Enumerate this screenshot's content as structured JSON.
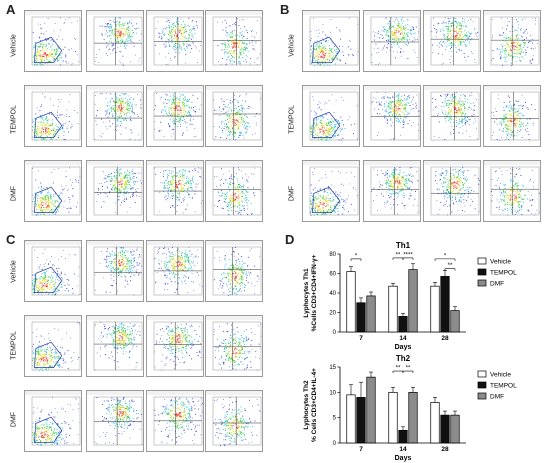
{
  "panels": {
    "A": {
      "letter": "A",
      "rows": [
        "Vehicle",
        "TEMPOL",
        "DMF"
      ]
    },
    "B": {
      "letter": "B",
      "rows": [
        "Vehicle",
        "TEMPOL",
        "DMF"
      ]
    },
    "C": {
      "letter": "C",
      "rows": [
        "Vehicle",
        "TEMPOL",
        "DMF"
      ]
    },
    "D": {
      "letter": "D"
    }
  },
  "colors": {
    "vehicle": "#ffffff",
    "tempol": "#111111",
    "dmf": "#8c8c8c"
  },
  "chart_data": [
    {
      "type": "bar",
      "title": "Th1",
      "ylabel_line1": "Lyphocytes Th1",
      "ylabel_line2": "%Cells CD3+CD4+IFN-γ+",
      "xlabel": "Days",
      "categories": [
        "7",
        "14",
        "28"
      ],
      "yticks": [
        0,
        20,
        40,
        60,
        80
      ],
      "ylim": [
        0,
        80
      ],
      "legend_position": "right",
      "series": [
        {
          "name": "Vehicle",
          "values": [
            62,
            47,
            47
          ],
          "errors": [
            5,
            3,
            4
          ]
        },
        {
          "name": "TEMPOL",
          "values": [
            30,
            16,
            57
          ],
          "errors": [
            5,
            3,
            6
          ]
        },
        {
          "name": "DMF",
          "values": [
            37,
            64,
            22
          ],
          "errors": [
            4,
            6,
            4
          ]
        }
      ],
      "significance": [
        "*",
        "**",
        "****",
        "*",
        "**"
      ]
    },
    {
      "type": "bar",
      "title": "Th2",
      "ylabel_line1": "Lyphocytes Th2",
      "ylabel_line2": "% Cells CD3+CD4+IL-4+",
      "xlabel": "Days",
      "categories": [
        "7",
        "14",
        "28"
      ],
      "yticks": [
        0,
        5,
        10,
        15
      ],
      "ylim": [
        0,
        15
      ],
      "legend_position": "right",
      "series": [
        {
          "name": "Vehicle",
          "values": [
            9.5,
            10,
            8
          ],
          "errors": [
            2,
            1,
            1
          ]
        },
        {
          "name": "TEMPOL",
          "values": [
            9,
            2.5,
            5.5
          ],
          "errors": [
            3,
            0.7,
            0.8
          ]
        },
        {
          "name": "DMF",
          "values": [
            13,
            10,
            5.5
          ],
          "errors": [
            1,
            1,
            0.8
          ]
        }
      ],
      "significance": [
        "**",
        "**"
      ]
    }
  ]
}
